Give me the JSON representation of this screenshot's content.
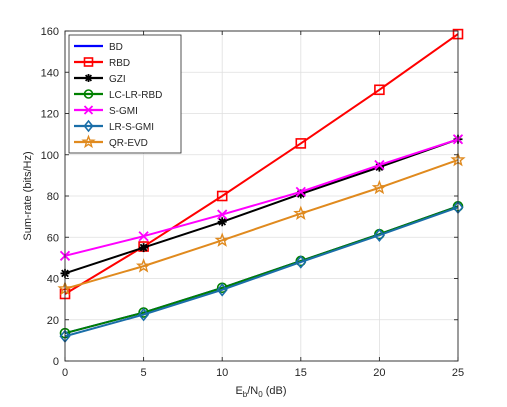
{
  "chart_data": {
    "type": "line",
    "title": "",
    "xlabel_main": "E",
    "xlabel_sub1": "b",
    "xlabel_mid": "/N",
    "xlabel_sub2": "0",
    "xlabel_unit": " (dB)",
    "ylabel": "Sum-rate (bits/Hz)",
    "xlim": [
      0,
      25
    ],
    "ylim": [
      0,
      160
    ],
    "x_ticks": [
      "0",
      "5",
      "10",
      "15",
      "20",
      "25"
    ],
    "y_ticks": [
      "0",
      "20",
      "40",
      "60",
      "80",
      "100",
      "120",
      "140",
      "160"
    ],
    "grid": true,
    "legend_position": "top-left",
    "x": [
      0,
      5,
      10,
      15,
      20,
      25
    ],
    "series": [
      {
        "name": "BD",
        "color": "#0000ff",
        "marker": "none",
        "values": [
          13.5,
          23.5,
          35.5,
          48.5,
          61.5,
          75
        ]
      },
      {
        "name": "RBD",
        "color": "#ff0000",
        "marker": "square",
        "values": [
          32.5,
          55.5,
          80,
          105.5,
          131.5,
          158.5
        ]
      },
      {
        "name": "GZI",
        "color": "#000000",
        "marker": "asterisk",
        "values": [
          42.5,
          55,
          67.5,
          81,
          94,
          107.5
        ]
      },
      {
        "name": "LC-LR-RBD",
        "color": "#008000",
        "marker": "circle",
        "values": [
          13.5,
          23.5,
          35.5,
          48.5,
          61.5,
          75
        ]
      },
      {
        "name": "S-GMI",
        "color": "#ff00ff",
        "marker": "x",
        "values": [
          51,
          60.5,
          71,
          82,
          95,
          107.5
        ]
      },
      {
        "name": "LR-S-GMI",
        "color": "#1a6ea8",
        "marker": "diamond",
        "values": [
          12,
          22.5,
          34.5,
          48,
          61,
          74.5
        ]
      },
      {
        "name": "QR-EVD",
        "color": "#e08a1e",
        "marker": "pentagram",
        "values": [
          35,
          46,
          58.5,
          71.5,
          84,
          97.5
        ]
      }
    ]
  }
}
